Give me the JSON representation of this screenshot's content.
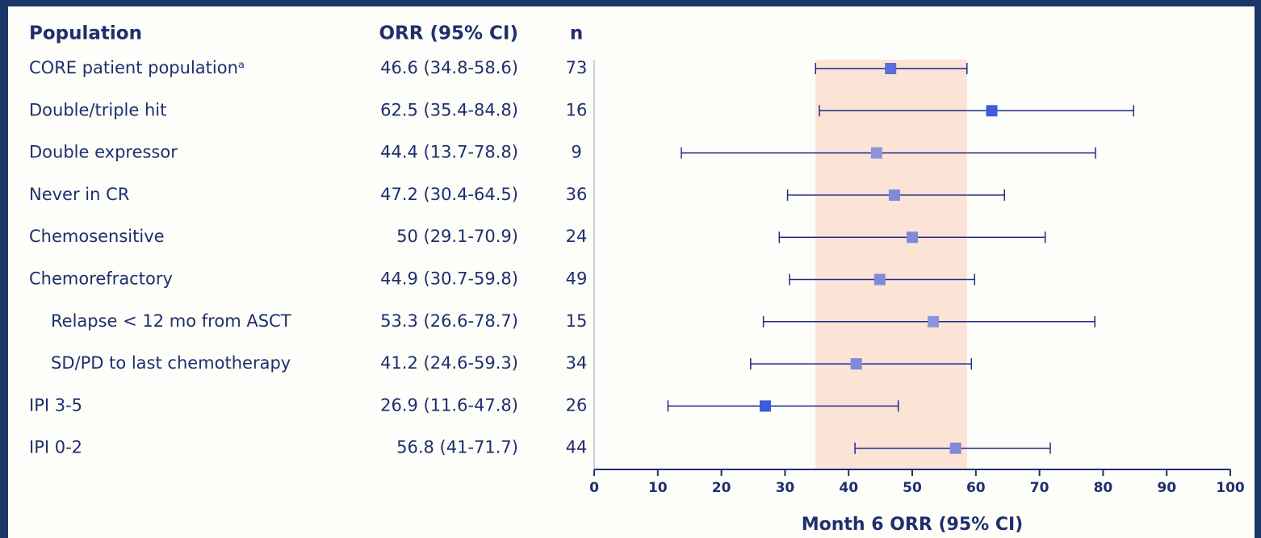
{
  "chart_data": {
    "type": "forest",
    "headers": [
      "Population",
      "ORR (95% CI)",
      "n"
    ],
    "categories": [
      "CORE patient populationᵃ",
      "Double/triple hit",
      "Double expressor",
      "Never in CR",
      "Chemosensitive",
      "Chemorefractory",
      "Relapse < 12 mo from ASCT",
      "SD/PD to last chemotherapy",
      "IPI 3-5",
      "IPI 0-2"
    ],
    "levels": [
      0,
      0,
      0,
      0,
      0,
      0,
      1,
      1,
      0,
      0
    ],
    "values": [
      46.6,
      62.5,
      44.4,
      47.2,
      50,
      44.9,
      53.3,
      41.2,
      26.9,
      56.8
    ],
    "lower": [
      34.8,
      35.4,
      13.7,
      30.4,
      29.1,
      30.7,
      26.6,
      24.6,
      11.6,
      41
    ],
    "upper": [
      58.6,
      84.8,
      78.8,
      64.5,
      70.9,
      59.8,
      78.7,
      59.3,
      47.8,
      71.7
    ],
    "value_labels": [
      "46.6 (34.8-58.6)",
      "62.5 (35.4-84.8)",
      "44.4 (13.7-78.8)",
      "47.2 (30.4-64.5)",
      "50 (29.1-70.9)",
      "44.9 (30.7-59.8)",
      "53.3 (26.6-78.7)",
      "41.2 (24.6-59.3)",
      "26.9 (11.6-47.8)",
      "56.8 (41-71.7)"
    ],
    "n": [
      73,
      16,
      9,
      36,
      24,
      49,
      15,
      34,
      26,
      44
    ],
    "colors": [
      "#5a6fd8",
      "#3f5bdc",
      "#8d93d9",
      "#7f8ad9",
      "#7f8ad9",
      "#7f8ad9",
      "#8d93d9",
      "#7f8ad9",
      "#3f5bdc",
      "#7f8ad9"
    ],
    "line_color": "#1f2a8a",
    "band_color": "#fbe3d6",
    "xlim": [
      0,
      100
    ],
    "xticks": [
      0,
      10,
      20,
      30,
      40,
      50,
      60,
      70,
      80,
      90,
      100
    ],
    "xlabel": "Month 6 ORR (95% CI)"
  }
}
